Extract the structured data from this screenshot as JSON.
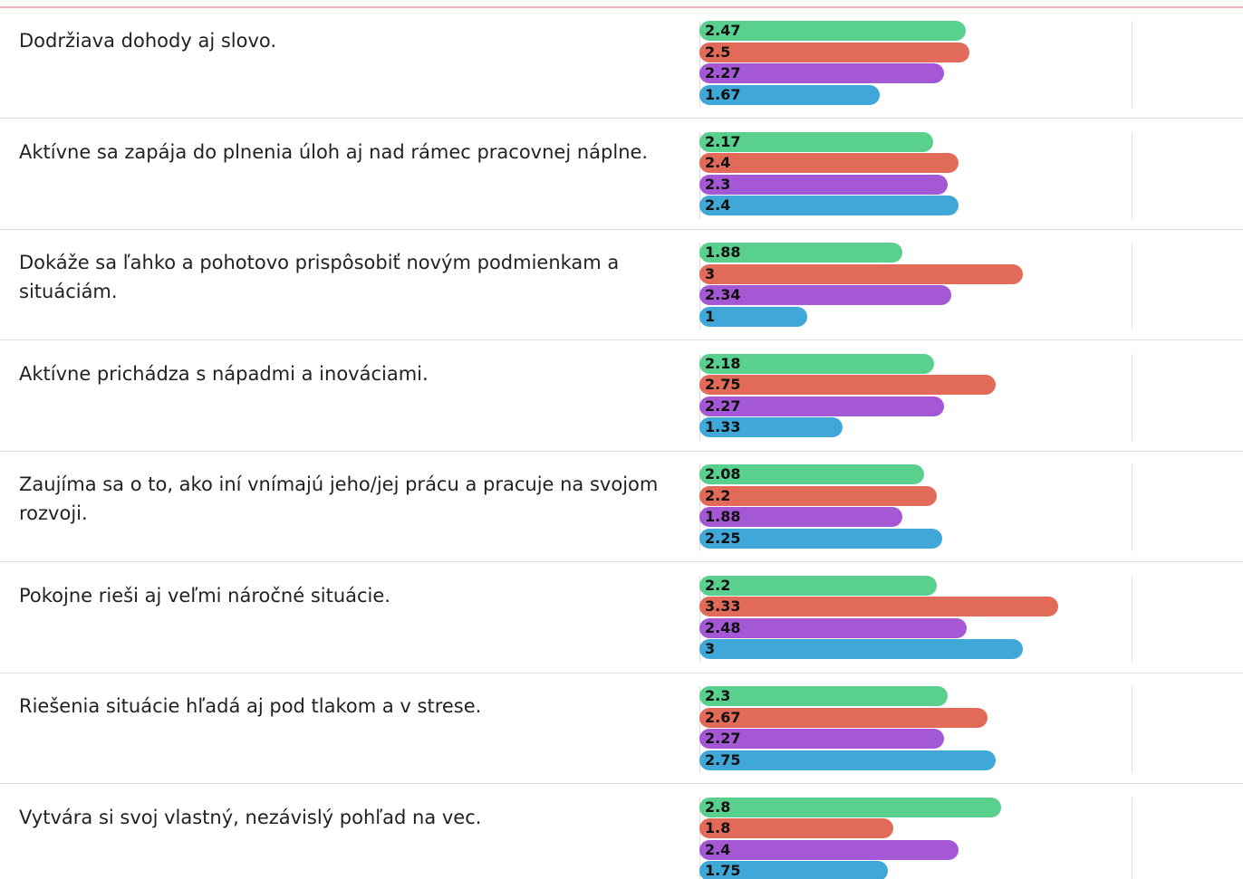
{
  "colors": [
    "#5ad08f",
    "#e26a58",
    "#a558d6",
    "#3fa8d8"
  ],
  "rows": [
    {
      "label": "Dodržiava dohody aj slovo.",
      "values": [
        2.47,
        2.5,
        2.27,
        1.67
      ]
    },
    {
      "label": "Aktívne sa zapája do plnenia úloh aj nad rámec pracovnej náplne.",
      "values": [
        2.17,
        2.4,
        2.3,
        2.4
      ]
    },
    {
      "label": "Dokáže sa ľahko a pohotovo prispôsobiť novým podmienkam a situáciám.",
      "values": [
        1.88,
        3,
        2.34,
        1
      ]
    },
    {
      "label": "Aktívne prichádza s nápadmi a inováciami.",
      "values": [
        2.18,
        2.75,
        2.27,
        1.33
      ]
    },
    {
      "label": "Zaujíma sa o to, ako iní vnímajú jeho/jej prácu a pracuje na svojom rozvoji.",
      "values": [
        2.08,
        2.2,
        1.88,
        2.25
      ]
    },
    {
      "label": "Pokojne rieši aj veľmi náročné situácie.",
      "values": [
        2.2,
        3.33,
        2.48,
        3
      ]
    },
    {
      "label": "Riešenia situácie hľadá aj pod tlakom a v strese.",
      "values": [
        2.3,
        2.67,
        2.27,
        2.75
      ]
    },
    {
      "label": "Vytvára si svoj vlastný, nezávislý pohľad na vec.",
      "values": [
        2.8,
        1.8,
        2.4,
        1.75
      ]
    }
  ]
}
